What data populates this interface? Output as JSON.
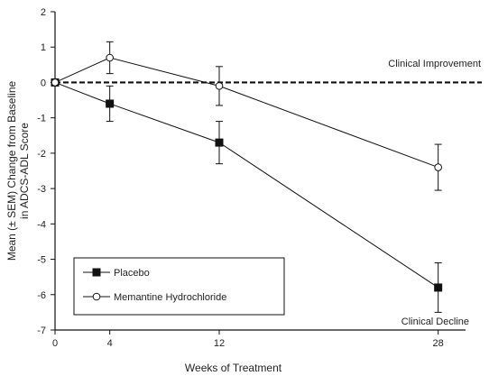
{
  "chart_data": {
    "type": "line",
    "x": [
      0,
      4,
      12,
      28
    ],
    "xticks": [
      "0",
      "4",
      "12",
      "28"
    ],
    "yticks": [
      "2",
      "1",
      "0",
      "-1",
      "-2",
      "-3",
      "-4",
      "-5",
      "-6",
      "-7"
    ],
    "xlabel": "Weeks of Treatment",
    "ylabel_line1": "Mean (± SEM) Change from Baseline",
    "ylabel_line2": "in ADCS-ADL Score",
    "ylim": [
      -7,
      2
    ],
    "xlim": [
      0,
      30
    ],
    "series": [
      {
        "name": "Placebo",
        "marker": "filled-square",
        "color": "#111111",
        "values": [
          0,
          -0.6,
          -1.7,
          -5.8
        ],
        "sem": [
          0,
          0.5,
          0.6,
          0.7
        ]
      },
      {
        "name": "Memantine Hydrochloride",
        "marker": "open-circle",
        "color": "#111111",
        "values": [
          0,
          0.7,
          -0.1,
          -2.4
        ],
        "sem": [
          0,
          0.45,
          0.55,
          0.65
        ]
      }
    ],
    "reference_line": {
      "y": 0,
      "style": "dashed"
    },
    "annotations": {
      "improvement": "Clinical Improvement",
      "decline": "Clinical Decline"
    },
    "legend_position": "bottom-left",
    "grid": false
  }
}
